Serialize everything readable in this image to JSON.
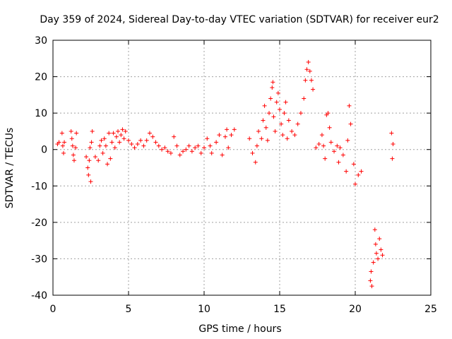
{
  "chart_data": {
    "type": "scatter",
    "title": "Day 359 of 2024, Sidereal Day-to-day VTEC variation (SDTVAR) for receiver eur2",
    "xlabel": "GPS time / hours",
    "ylabel": "SDTVAR / TECUs",
    "xlim": [
      0,
      25
    ],
    "ylim": [
      -40,
      30
    ],
    "xticks": [
      0,
      5,
      10,
      15,
      20,
      25
    ],
    "yticks": [
      -40,
      -30,
      -20,
      -10,
      0,
      10,
      20,
      30
    ],
    "grid": true,
    "marker": "+",
    "color": "#ff0000",
    "series": [
      {
        "name": "SDTVAR",
        "points": [
          [
            0.3,
            1.5
          ],
          [
            0.4,
            2.0
          ],
          [
            0.6,
            4.5
          ],
          [
            0.65,
            1.0
          ],
          [
            0.7,
            -1.0
          ],
          [
            0.75,
            2.0
          ],
          [
            1.2,
            5.0
          ],
          [
            1.25,
            3.0
          ],
          [
            1.3,
            1.0
          ],
          [
            1.35,
            -1.5
          ],
          [
            1.4,
            -3.0
          ],
          [
            1.5,
            0.5
          ],
          [
            1.55,
            4.5
          ],
          [
            2.2,
            -2.0
          ],
          [
            2.3,
            -5.0
          ],
          [
            2.35,
            -7.0
          ],
          [
            2.4,
            -3.0
          ],
          [
            2.45,
            0.5
          ],
          [
            2.5,
            -8.8
          ],
          [
            2.55,
            2.0
          ],
          [
            2.6,
            5.0
          ],
          [
            2.8,
            -2.0
          ],
          [
            3.0,
            -3.0
          ],
          [
            3.1,
            1.0
          ],
          [
            3.2,
            2.5
          ],
          [
            3.3,
            -1.0
          ],
          [
            3.4,
            3.0
          ],
          [
            3.5,
            1.0
          ],
          [
            3.6,
            -4.0
          ],
          [
            3.7,
            4.5
          ],
          [
            3.8,
            -2.5
          ],
          [
            3.9,
            2.0
          ],
          [
            4.0,
            4.5
          ],
          [
            4.1,
            0.5
          ],
          [
            4.2,
            3.5
          ],
          [
            4.3,
            5.0
          ],
          [
            4.4,
            2.0
          ],
          [
            4.5,
            4.0
          ],
          [
            4.6,
            5.5
          ],
          [
            4.7,
            3.0
          ],
          [
            4.8,
            5.0
          ],
          [
            5.0,
            2.5
          ],
          [
            5.2,
            1.5
          ],
          [
            5.4,
            0.5
          ],
          [
            5.6,
            1.5
          ],
          [
            5.8,
            2.5
          ],
          [
            6.0,
            1.0
          ],
          [
            6.2,
            2.5
          ],
          [
            6.4,
            4.5
          ],
          [
            6.6,
            3.5
          ],
          [
            6.8,
            2.0
          ],
          [
            7.0,
            1.0
          ],
          [
            7.2,
            0.0
          ],
          [
            7.4,
            0.5
          ],
          [
            7.6,
            -0.5
          ],
          [
            7.8,
            -1.0
          ],
          [
            8.0,
            3.5
          ],
          [
            8.2,
            1.0
          ],
          [
            8.4,
            -1.5
          ],
          [
            8.6,
            -0.5
          ],
          [
            8.8,
            0.0
          ],
          [
            9.0,
            1.0
          ],
          [
            9.2,
            -0.5
          ],
          [
            9.4,
            0.5
          ],
          [
            9.6,
            1.0
          ],
          [
            9.8,
            -1.0
          ],
          [
            10.0,
            0.5
          ],
          [
            10.2,
            3.0
          ],
          [
            10.4,
            1.0
          ],
          [
            10.5,
            -1.0
          ],
          [
            10.8,
            2.0
          ],
          [
            11.0,
            4.0
          ],
          [
            11.2,
            -1.5
          ],
          [
            11.4,
            3.5
          ],
          [
            11.5,
            5.5
          ],
          [
            11.6,
            0.5
          ],
          [
            11.8,
            4.0
          ],
          [
            12.0,
            5.5
          ],
          [
            13.0,
            3.0
          ],
          [
            13.2,
            -1.0
          ],
          [
            13.4,
            -3.5
          ],
          [
            13.5,
            1.0
          ],
          [
            13.6,
            5.0
          ],
          [
            13.8,
            3.0
          ],
          [
            13.9,
            8.0
          ],
          [
            14.0,
            12.0
          ],
          [
            14.1,
            6.0
          ],
          [
            14.2,
            2.5
          ],
          [
            14.3,
            10.0
          ],
          [
            14.4,
            14.0
          ],
          [
            14.5,
            17.0
          ],
          [
            14.55,
            18.5
          ],
          [
            14.6,
            9.0
          ],
          [
            14.7,
            5.0
          ],
          [
            14.8,
            13.0
          ],
          [
            14.9,
            15.5
          ],
          [
            15.0,
            11.0
          ],
          [
            15.1,
            7.0
          ],
          [
            15.2,
            4.0
          ],
          [
            15.3,
            10.0
          ],
          [
            15.4,
            13.0
          ],
          [
            15.5,
            3.0
          ],
          [
            15.6,
            8.0
          ],
          [
            15.8,
            5.0
          ],
          [
            16.0,
            4.0
          ],
          [
            16.2,
            7.0
          ],
          [
            16.4,
            10.0
          ],
          [
            16.6,
            14.0
          ],
          [
            16.7,
            19.0
          ],
          [
            16.8,
            22.0
          ],
          [
            16.9,
            24.0
          ],
          [
            17.0,
            21.5
          ],
          [
            17.1,
            19.0
          ],
          [
            17.2,
            16.5
          ],
          [
            17.4,
            0.5
          ],
          [
            17.6,
            1.5
          ],
          [
            17.8,
            4.0
          ],
          [
            17.9,
            1.0
          ],
          [
            18.0,
            -2.5
          ],
          [
            18.1,
            9.5
          ],
          [
            18.2,
            10.0
          ],
          [
            18.3,
            6.0
          ],
          [
            18.4,
            2.0
          ],
          [
            18.6,
            -0.5
          ],
          [
            18.8,
            1.0
          ],
          [
            18.9,
            -3.5
          ],
          [
            19.0,
            0.5
          ],
          [
            19.2,
            -1.5
          ],
          [
            19.4,
            -6.0
          ],
          [
            19.5,
            2.5
          ],
          [
            19.6,
            12.0
          ],
          [
            19.7,
            7.0
          ],
          [
            19.9,
            -4.0
          ],
          [
            20.0,
            -9.5
          ],
          [
            20.2,
            -7.0
          ],
          [
            20.4,
            -6.0
          ],
          [
            21.0,
            -36.0
          ],
          [
            21.05,
            -33.5
          ],
          [
            21.1,
            -37.5
          ],
          [
            21.2,
            -31.0
          ],
          [
            21.3,
            -22.0
          ],
          [
            21.35,
            -26.0
          ],
          [
            21.4,
            -28.5
          ],
          [
            21.5,
            -30.0
          ],
          [
            21.6,
            -24.5
          ],
          [
            21.7,
            -27.5
          ],
          [
            21.8,
            -29.0
          ],
          [
            22.4,
            4.5
          ],
          [
            22.5,
            1.5
          ],
          [
            22.45,
            -2.5
          ]
        ]
      }
    ]
  }
}
